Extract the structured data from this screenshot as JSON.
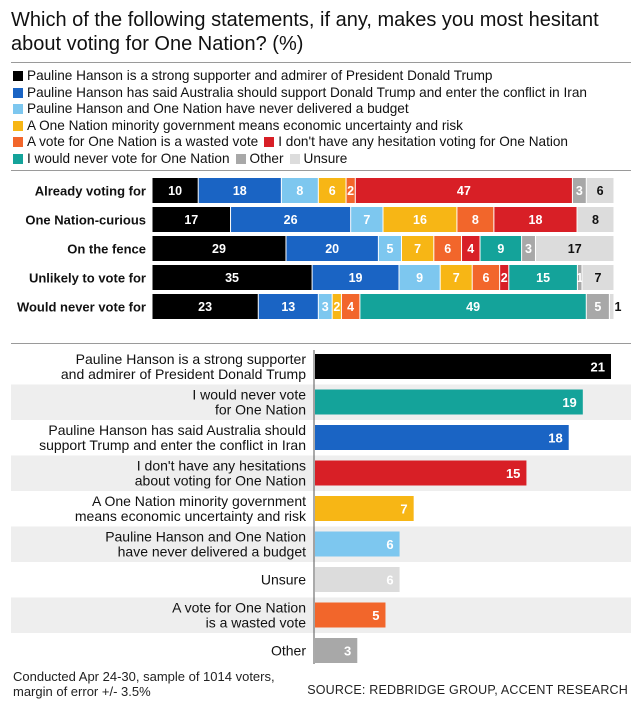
{
  "title": "Which of the following statements, if any, makes you most hesitant about voting for One Nation? (%)",
  "legend": [
    {
      "label": "Pauline Hanson is a strong supporter and admirer of President Donald Trump",
      "color": "#000000"
    },
    {
      "label": "Pauline Hanson has said Australia should support Donald Trump and enter the conflict in Iran",
      "color": "#1a64c4"
    },
    {
      "label": "Pauline Hanson and One Nation have never delivered a budget",
      "color": "#7dc7ef"
    },
    {
      "label": "A One Nation minority government means economic uncertainty and risk",
      "color": "#f7b615"
    },
    {
      "label": "A vote for One Nation is a wasted vote",
      "color": "#f2662b"
    },
    {
      "label": "I don't have any hesitation voting for One Nation",
      "color": "#d81f26"
    },
    {
      "label": "I would never vote for One Nation",
      "color": "#14a39a"
    },
    {
      "label": "Other",
      "color": "#a8a8a8"
    },
    {
      "label": "Unsure",
      "color": "#dcdcdc"
    }
  ],
  "chart_data": [
    {
      "type": "bar",
      "orientation": "horizontal-stacked",
      "categories": [
        "Already voting for",
        "One Nation-curious",
        "On the fence",
        "Unlikely to vote for",
        "Would never vote for"
      ],
      "series": [
        {
          "name": "Pauline Hanson is a strong supporter and admirer of President Donald Trump",
          "color": "#000000",
          "values": [
            10,
            17,
            29,
            35,
            23
          ]
        },
        {
          "name": "Pauline Hanson has said Australia should support Donald Trump and enter the conflict in Iran",
          "color": "#1a64c4",
          "values": [
            18,
            26,
            20,
            19,
            13
          ]
        },
        {
          "name": "Pauline Hanson and One Nation have never delivered a budget",
          "color": "#7dc7ef",
          "values": [
            8,
            7,
            5,
            9,
            3
          ]
        },
        {
          "name": "A One Nation minority government means economic uncertainty and risk",
          "color": "#f7b615",
          "values": [
            6,
            16,
            7,
            7,
            2
          ]
        },
        {
          "name": "A vote for One Nation is a wasted vote",
          "color": "#f2662b",
          "values": [
            2,
            8,
            6,
            6,
            4
          ]
        },
        {
          "name": "I don't have any hesitation voting for One Nation",
          "color": "#d81f26",
          "values": [
            47,
            18,
            4,
            2,
            0
          ]
        },
        {
          "name": "I would never vote for One Nation",
          "color": "#14a39a",
          "values": [
            0,
            0,
            9,
            15,
            49
          ]
        },
        {
          "name": "Other",
          "color": "#a8a8a8",
          "values": [
            3,
            0,
            3,
            1,
            5
          ]
        },
        {
          "name": "Unsure",
          "color": "#dcdcdc",
          "values": [
            6,
            8,
            17,
            7,
            1
          ]
        }
      ],
      "xlim": [
        0,
        100
      ]
    },
    {
      "type": "bar",
      "orientation": "horizontal",
      "categories": [
        "Pauline Hanson is a strong supporter and admirer of President Donald Trump",
        "I would never vote for One Nation",
        "Pauline Hanson has said Australia should support Trump and enter the conflict in Iran",
        "I don't have any hesitations about voting for One Nation",
        "A One Nation minority government means economic uncertainty and risk",
        "Pauline Hanson and One Nation have never delivered a budget",
        "Unsure",
        "A vote for One Nation is a wasted vote",
        "Other"
      ],
      "label_lines": [
        [
          "Pauline Hanson is a strong supporter",
          "and admirer of President Donald Trump"
        ],
        [
          "I would never vote",
          "for One Nation"
        ],
        [
          "Pauline Hanson has said Australia should",
          "support Trump and enter the conflict in Iran"
        ],
        [
          "I don't have any hesitations",
          "about voting for One Nation"
        ],
        [
          "A One Nation minority government",
          "means economic uncertainty and risk"
        ],
        [
          "Pauline Hanson and One Nation",
          "have never delivered a budget"
        ],
        [
          "Unsure"
        ],
        [
          "A vote for One Nation",
          "is a wasted vote"
        ],
        [
          "Other"
        ]
      ],
      "values": [
        21,
        19,
        18,
        15,
        7,
        6,
        6,
        5,
        3
      ],
      "colors": [
        "#000000",
        "#14a39a",
        "#1a64c4",
        "#d81f26",
        "#f7b615",
        "#7dc7ef",
        "#dcdcdc",
        "#f2662b",
        "#a8a8a8"
      ],
      "xlim": [
        0,
        21
      ]
    }
  ],
  "footnote": [
    "Conducted Apr 24-30,  sample of 1014 voters,",
    "margin of error +/- 3.5%"
  ],
  "source": "SOURCE: REDBRIDGE GROUP, ACCENT RESEARCH"
}
